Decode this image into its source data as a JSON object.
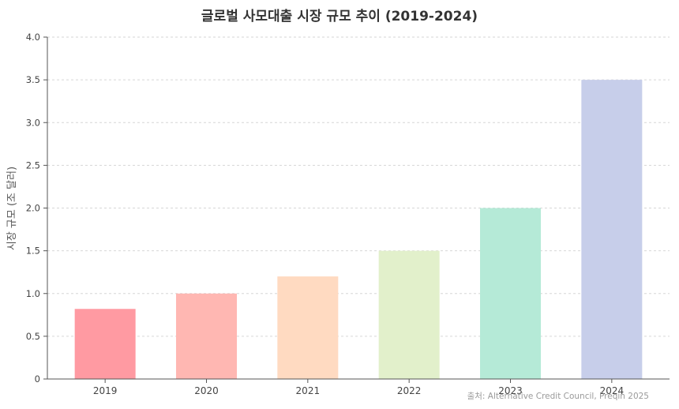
{
  "chart_data": {
    "type": "bar",
    "title": "글로벌 사모대출 시장 규모 추이 (2019-2024)",
    "xlabel": "",
    "ylabel": "시장 규모 (조 달러)",
    "categories": [
      "2019",
      "2020",
      "2021",
      "2022",
      "2023",
      "2024"
    ],
    "values": [
      0.82,
      1.0,
      1.2,
      1.5,
      2.0,
      3.5
    ],
    "colors": [
      "#ff9aa2",
      "#ffb7b2",
      "#ffdac1",
      "#e2f0cb",
      "#b5ead7",
      "#c7ceea"
    ],
    "ylim": [
      0,
      4.0
    ],
    "yticks": [
      "0",
      "0.5",
      "1.0",
      "1.5",
      "2.0",
      "2.5",
      "3.0",
      "3.5",
      "4.0"
    ],
    "grid": "horizontal-dashed",
    "source": "출처: Alternative Credit Council, Preqin 2025"
  }
}
